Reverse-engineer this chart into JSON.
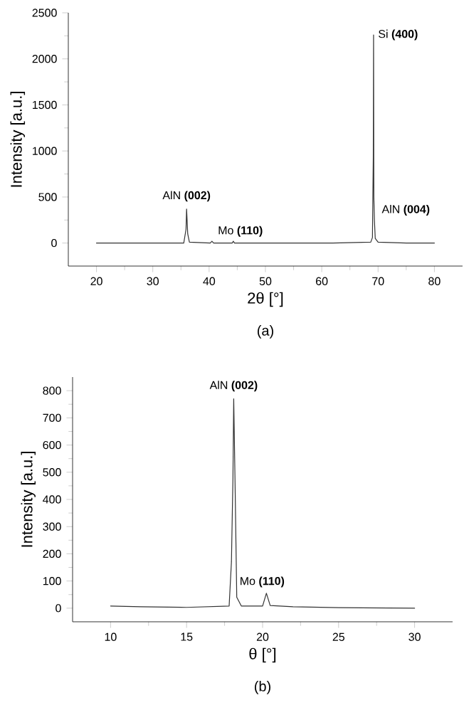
{
  "chart_data": [
    {
      "type": "line",
      "xlabel": "2θ [°]",
      "ylabel": "Intensity [a.u.]",
      "xlim": [
        15,
        85
      ],
      "ylim": [
        -250,
        2500
      ],
      "xticks": [
        20,
        30,
        40,
        50,
        60,
        70,
        80
      ],
      "yticks": [
        0,
        500,
        1000,
        1500,
        2000,
        2500
      ],
      "color": "#333333",
      "x": [
        20,
        30,
        35.5,
        35.9,
        36.0,
        36.2,
        36.5,
        40.2,
        40.5,
        40.8,
        44.1,
        44.3,
        44.5,
        62,
        68.7,
        69.0,
        69.15,
        69.2,
        69.25,
        69.35,
        69.5,
        70,
        75,
        80
      ],
      "values": [
        0,
        0,
        0,
        150,
        370,
        100,
        10,
        0,
        20,
        0,
        0,
        20,
        0,
        0,
        10,
        60,
        940,
        2260,
        500,
        250,
        50,
        10,
        0,
        0
      ],
      "annotations": [
        {
          "text": "AlN **(002)**",
          "x": 36.0,
          "y": 370
        },
        {
          "text": "Mo **(110)**",
          "x": 40.5,
          "y": 20
        },
        {
          "text": "Si **(400)**",
          "x": 69.2,
          "y": 2260
        },
        {
          "text": "AlN **(004)**",
          "x": 69.35,
          "y": 250
        },
        "(a)"
      ]
    },
    {
      "type": "line",
      "xlabel": "θ [°]",
      "ylabel": "Intensity [a.u.]",
      "xlim": [
        7.5,
        32.5
      ],
      "ylim": [
        -50,
        850
      ],
      "xticks": [
        10,
        15,
        20,
        25,
        30
      ],
      "yticks": [
        0,
        100,
        200,
        300,
        400,
        500,
        600,
        700,
        800
      ],
      "color": "#333333",
      "x": [
        10,
        12,
        15,
        17.8,
        17.95,
        18.05,
        18.1,
        18.2,
        18.3,
        18.6,
        20.0,
        20.25,
        20.5,
        22,
        25,
        30
      ],
      "values": [
        8,
        5,
        3,
        8,
        170,
        480,
        770,
        420,
        40,
        8,
        8,
        55,
        10,
        5,
        2,
        0
      ],
      "annotations": [
        {
          "text": "AlN **(002)**",
          "x": 18.1,
          "y": 770
        },
        {
          "text": "Mo **(110)**",
          "x": 20.25,
          "y": 55
        },
        "(b)"
      ]
    }
  ]
}
